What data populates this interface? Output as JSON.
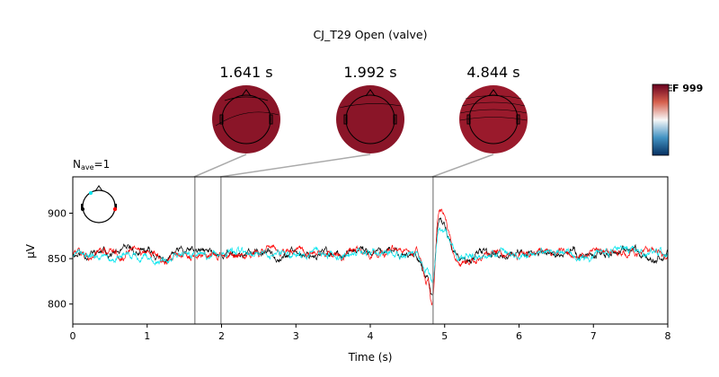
{
  "chart_data": {
    "type": "line",
    "title": "CJ_T29 Open (valve)",
    "nave_label": "N",
    "nave_sub": "ave",
    "nave_value": "=1",
    "xlabel": "Time (s)",
    "ylabel": "µV",
    "xlim": [
      0,
      8
    ],
    "ylim": [
      778,
      940
    ],
    "xticks": [
      0,
      1,
      2,
      3,
      4,
      5,
      6,
      7,
      8
    ],
    "yticks": [
      800,
      850,
      900
    ],
    "grid": false,
    "legend": "none",
    "baseline": 856,
    "series_colors": [
      "#000000",
      "#ff0000",
      "#00e5ee"
    ],
    "events": [
      {
        "t": 4.74,
        "amp": -25,
        "w": 0.06
      },
      {
        "t": 4.84,
        "amp": -55,
        "w": 0.05
      },
      {
        "t": 4.9,
        "amp": 25,
        "w": 0.06
      },
      {
        "t": 4.98,
        "amp": 20,
        "w": 0.08
      },
      {
        "t": 5.05,
        "amp": 12,
        "w": 0.1
      },
      {
        "t": 5.25,
        "amp": -10,
        "w": 0.18
      },
      {
        "t": 1.22,
        "amp": -10,
        "w": 0.1
      }
    ],
    "topomaps": [
      {
        "time": 1.641,
        "label": "1.641 s"
      },
      {
        "time": 1.992,
        "label": "1.992 s"
      },
      {
        "time": 4.844,
        "label": "4.844 s"
      }
    ],
    "colorbar": {
      "label": "F 999",
      "colors": [
        "#67001f",
        "#d6604d",
        "#f7f7f7",
        "#4393c3",
        "#053061"
      ]
    }
  }
}
